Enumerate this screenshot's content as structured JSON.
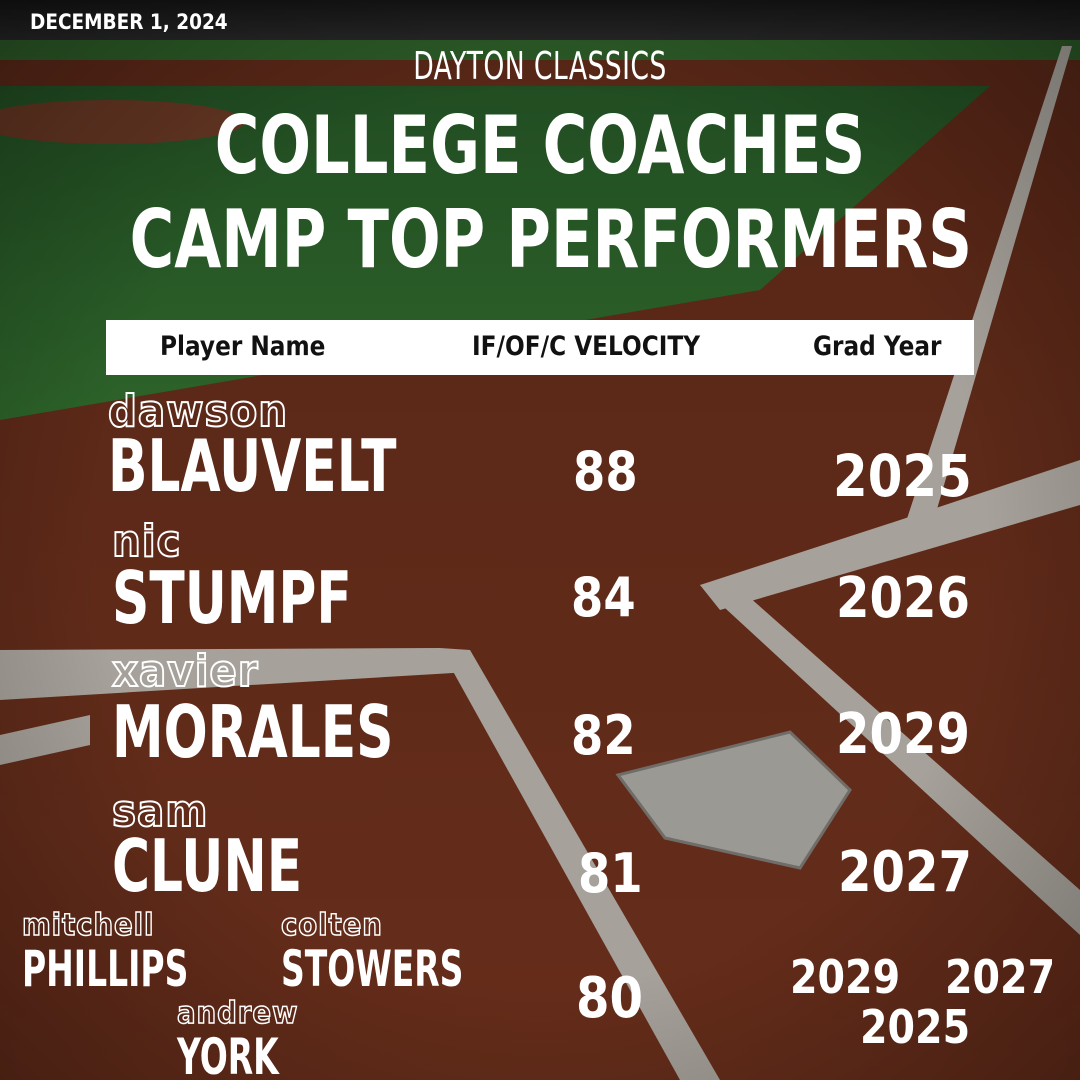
{
  "date": "DECEMBER 1, 2024",
  "organization": "DAYTON CLASSICS",
  "title_line1": "COLLEGE COACHES",
  "title_line2": "CAMP TOP PERFORMERS",
  "table": {
    "headers": [
      "Player Name",
      "IF/OF/C VELOCITY",
      "Grad Year"
    ],
    "rows": [
      {
        "first": "dawson",
        "last": "BLAUVELT",
        "velocity": "88",
        "grad": "2025"
      },
      {
        "first": "nic",
        "last": "STUMPF",
        "velocity": "84",
        "grad": "2026"
      },
      {
        "first": "xavier",
        "last": "MORALES",
        "velocity": "82",
        "grad": "2029"
      },
      {
        "first": "sam",
        "last": "CLUNE",
        "velocity": "81",
        "grad": "2027"
      }
    ],
    "shared_row": {
      "velocity": "80",
      "players": [
        {
          "first": "mitchell",
          "last": "PHILLIPS",
          "grad": "2029"
        },
        {
          "first": "colten",
          "last": "STOWERS",
          "grad": "2027"
        },
        {
          "first": "andrew",
          "last": "YORK",
          "grad": "2025"
        }
      ]
    }
  },
  "colors": {
    "text": "#ffffff",
    "header_bg": "#ffffff",
    "header_text": "#111111",
    "turf": "#8b3b22",
    "grass": "#3a7a36",
    "chalk": "#e6e0d6"
  }
}
